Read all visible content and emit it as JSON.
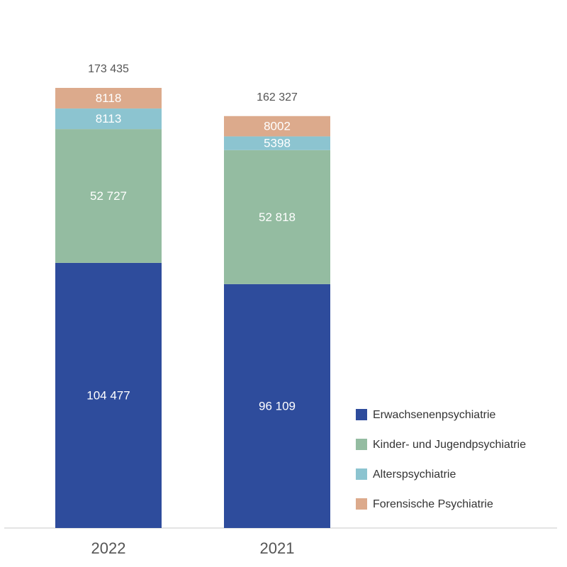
{
  "chart_data": {
    "type": "bar",
    "stacked": true,
    "categories": [
      "2022",
      "2021"
    ],
    "series": [
      {
        "name": "Erwachsenenpsychiatrie",
        "values": [
          104477,
          96109
        ],
        "labels": [
          "104 477",
          "96 109"
        ],
        "color": "#2e4c9c"
      },
      {
        "name": "Kinder- und Jugendpsychiatrie",
        "values": [
          52727,
          52818
        ],
        "labels": [
          "52 727",
          "52 818"
        ],
        "color": "#94bca1"
      },
      {
        "name": "Alterspsychiatrie",
        "values": [
          8113,
          5398
        ],
        "labels": [
          "8113",
          "5398"
        ],
        "color": "#8cc4d0"
      },
      {
        "name": "Forensische Psychiatrie",
        "values": [
          8118,
          8002
        ],
        "labels": [
          "8118",
          "8002"
        ],
        "color": "#dcaa8c"
      }
    ],
    "totals": [
      173435,
      162327
    ],
    "total_labels": [
      "173 435",
      "162 327"
    ],
    "legend_position": "bottom-right",
    "grid": false
  }
}
